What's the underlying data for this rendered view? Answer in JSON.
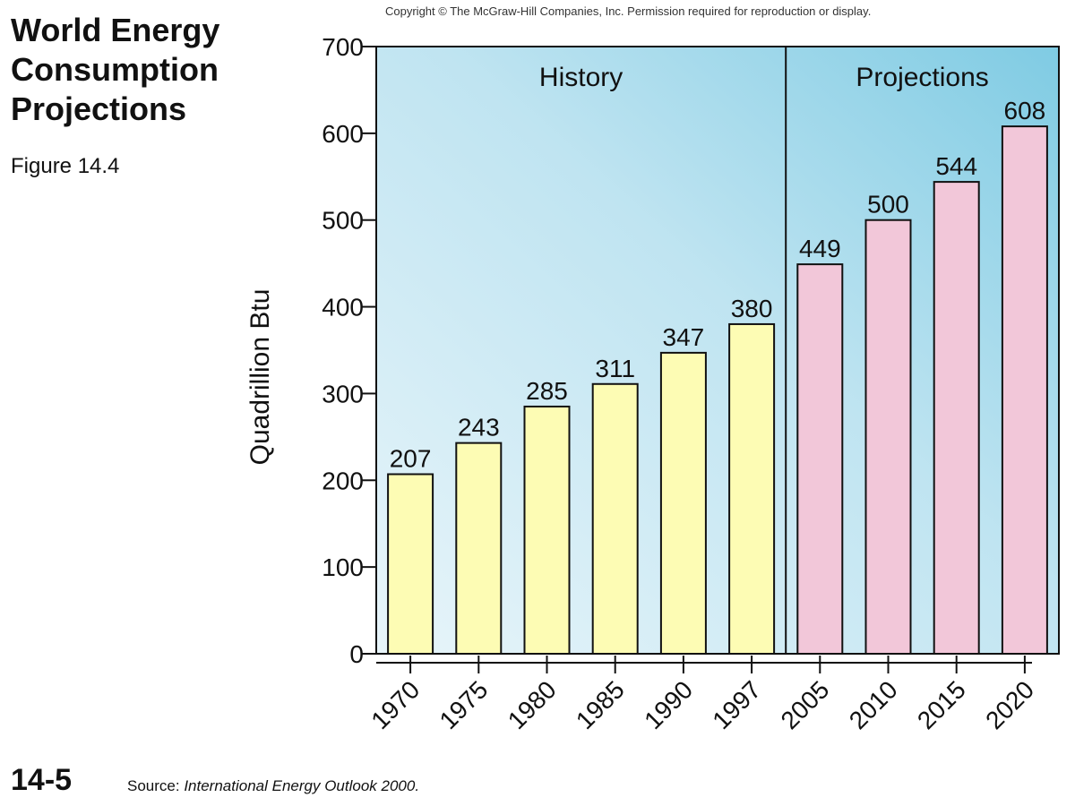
{
  "slide": {
    "title": "World Energy Consumption Projections",
    "figure_label": "Figure 14.4",
    "copyright": "Copyright © The McGraw-Hill Companies, Inc. Permission required for reproduction or display.",
    "slide_number": "14-5",
    "source_prefix": "Source: ",
    "source_title": "International Energy Outlook 2000."
  },
  "colors": {
    "history_bar": "#fdfcb4",
    "projection_bar": "#f2c7d9",
    "panel_light": "#e8f5fa",
    "panel_dark": "#7fcbe3",
    "stroke": "#111111"
  },
  "chart_data": {
    "type": "bar",
    "ylabel": "Quadrillion Btu",
    "xlabel": "",
    "ylim": [
      0,
      700
    ],
    "yticks": [
      0,
      100,
      200,
      300,
      400,
      500,
      600,
      700
    ],
    "categories": [
      "1970",
      "1975",
      "1980",
      "1985",
      "1990",
      "1997",
      "2005",
      "2010",
      "2015",
      "2020"
    ],
    "values": [
      207,
      243,
      285,
      311,
      347,
      380,
      449,
      500,
      544,
      608
    ],
    "data_labels": [
      "207",
      "243",
      "285",
      "311",
      "347",
      "380",
      "449",
      "500",
      "544",
      "608"
    ],
    "regions": [
      {
        "label": "History",
        "categories": [
          "1970",
          "1975",
          "1980",
          "1985",
          "1990",
          "1997"
        ]
      },
      {
        "label": "Projections",
        "categories": [
          "2005",
          "2010",
          "2015",
          "2020"
        ]
      }
    ],
    "grid": false,
    "legend": "none"
  }
}
